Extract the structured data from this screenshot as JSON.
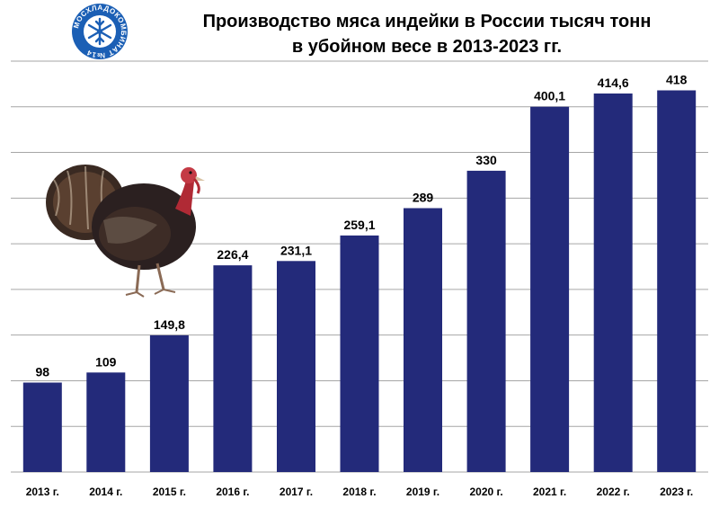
{
  "logo": {
    "text": "МОСХЛАДОКОМБИНАТ №14",
    "color_outer": "#1b5fb5",
    "color_inner": "#ffffff",
    "icon": "snowflake-icon"
  },
  "illustration": {
    "icon": "turkey-icon"
  },
  "chart_data": {
    "type": "bar",
    "title_lines": [
      "Производство мяса индейки в России тысяч тонн",
      "в убойном весе в 2013-2023 гг."
    ],
    "categories": [
      "2013 г.",
      "2014 г.",
      "2015 г.",
      "2016 г.",
      "2017 г.",
      "2018 г.",
      "2019 г.",
      "2020 г.",
      "2021 г.",
      "2022 г.",
      "2023 г."
    ],
    "values": [
      98,
      109,
      149.8,
      226.4,
      231.1,
      259.1,
      289,
      330,
      400.1,
      414.6,
      418
    ],
    "value_labels": [
      "98",
      "109",
      "149,8",
      "226,4",
      "231,1",
      "259,1",
      "289",
      "330",
      "400,1",
      "414,6",
      "418"
    ],
    "ylim": [
      0,
      450
    ],
    "grid": true,
    "gridline_step": 50,
    "bar_color": "#232a7a",
    "grid_color": "#a6a6a6"
  }
}
